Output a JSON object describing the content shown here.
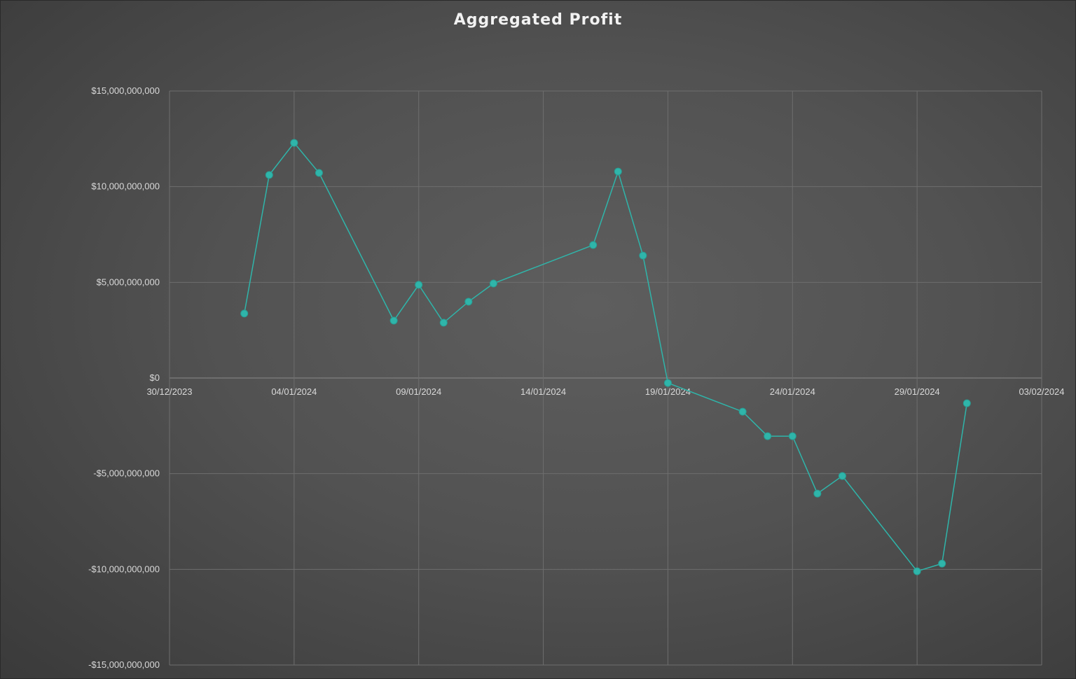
{
  "chart_data": {
    "type": "line",
    "title": "Aggregated Profit",
    "xlabel": "",
    "ylabel": "",
    "xlim": [
      "30/12/2023",
      "03/02/2024"
    ],
    "ylim": [
      -15000000000,
      15000000000
    ],
    "x_ticks": [
      "30/12/2023",
      "04/01/2024",
      "09/01/2024",
      "14/01/2024",
      "19/01/2024",
      "24/01/2024",
      "29/01/2024",
      "03/02/2024"
    ],
    "y_ticks": [
      15000000000,
      10000000000,
      5000000000,
      0,
      -5000000000,
      -10000000000,
      -15000000000
    ],
    "y_tick_labels": [
      "$15,000,000,000",
      "$10,000,000,000",
      "$5,000,000,000",
      "$0",
      "-$5,000,000,000",
      "-$10,000,000,000",
      "-$15,000,000,000"
    ],
    "grid": true,
    "marker": "circle",
    "colors": {
      "series": "#2fb5aa",
      "grid": "#6e6e6e",
      "axis": "#8a8a8a"
    },
    "series": [
      {
        "x": [
          "02/01/2024",
          "03/01/2024",
          "04/01/2024",
          "05/01/2024",
          "08/01/2024",
          "09/01/2024",
          "10/01/2024",
          "11/01/2024",
          "12/01/2024",
          "16/01/2024",
          "17/01/2024",
          "18/01/2024",
          "19/01/2024",
          "22/01/2024",
          "23/01/2024",
          "24/01/2024",
          "25/01/2024",
          "26/01/2024",
          "29/01/2024",
          "30/01/2024",
          "31/01/2024"
        ],
        "values": [
          3370000000,
          10610000000,
          12290000000,
          10720000000,
          3000000000,
          4870000000,
          2890000000,
          3990000000,
          4940000000,
          6950000000,
          10790000000,
          6400000000,
          -260000000,
          -1760000000,
          -3040000000,
          -3040000000,
          -6040000000,
          -5120000000,
          -10100000000,
          -9700000000,
          -1320000000
        ]
      }
    ]
  }
}
